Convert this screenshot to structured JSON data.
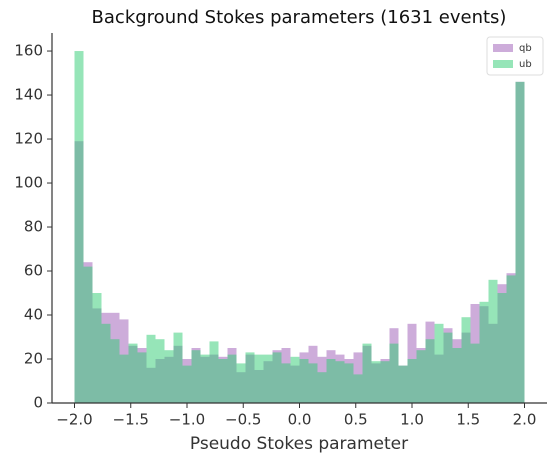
{
  "chart_data": {
    "type": "histogram",
    "title": "Background Stokes parameters (1631 events)",
    "xlabel": "Pseudo Stokes parameter",
    "bins": [
      -2,
      -1.92,
      -1.84,
      -1.76,
      -1.68,
      -1.6,
      -1.52,
      -1.44,
      -1.36,
      -1.28,
      -1.2,
      -1.12,
      -1.04,
      -0.96,
      -0.88,
      -0.8,
      -0.72,
      -0.64,
      -0.56,
      -0.48,
      -0.4,
      -0.32,
      -0.24,
      -0.16,
      -0.08,
      0,
      0.08,
      0.16,
      0.24,
      0.32,
      0.4,
      0.48,
      0.56,
      0.64,
      0.72,
      0.8,
      0.88,
      0.96,
      1.04,
      1.12,
      1.2,
      1.28,
      1.36,
      1.44,
      1.52,
      1.6,
      1.68,
      1.76,
      1.84,
      1.92,
      2
    ],
    "series": [
      {
        "name": "qb",
        "color": "#9b59b6",
        "values": [
          119,
          64,
          43,
          41,
          41,
          38,
          26,
          25,
          16,
          20,
          21,
          26,
          20,
          25,
          21,
          22,
          21,
          25,
          14,
          22,
          15,
          19,
          24,
          25,
          17,
          23,
          26,
          21,
          24,
          22,
          20,
          23,
          26,
          18,
          20,
          34,
          17,
          36,
          25,
          37,
          22,
          34,
          29,
          32,
          45,
          44,
          36,
          54,
          59,
          146
        ]
      },
      {
        "name": "ub",
        "color": "#2ecc71",
        "values": [
          160,
          62,
          50,
          36,
          29,
          22,
          27,
          23,
          31,
          29,
          24,
          32,
          17,
          24,
          22,
          28,
          20,
          22,
          18,
          23,
          22,
          22,
          23,
          18,
          21,
          20,
          18,
          14,
          20,
          19,
          18,
          13,
          27,
          19,
          19,
          27,
          17,
          20,
          24,
          29,
          36,
          32,
          25,
          39,
          27,
          46,
          56,
          50,
          58,
          146
        ]
      }
    ],
    "xlim": [
      -2.2,
      2.2
    ],
    "ylim": [
      0,
      168.2
    ],
    "xticks": [
      {
        "value": -2,
        "label": "−2.0"
      },
      {
        "value": -1.5,
        "label": "−1.5"
      },
      {
        "value": -1,
        "label": "−1.0"
      },
      {
        "value": -0.5,
        "label": "−0.5"
      },
      {
        "value": 0,
        "label": "0.0"
      },
      {
        "value": 0.5,
        "label": "0.5"
      },
      {
        "value": 1,
        "label": "1.0"
      },
      {
        "value": 1.5,
        "label": "1.5"
      },
      {
        "value": 2,
        "label": "2.0"
      }
    ],
    "yticks": [
      0,
      20,
      40,
      60,
      80,
      100,
      120,
      140,
      160
    ],
    "legend": "upper right"
  }
}
